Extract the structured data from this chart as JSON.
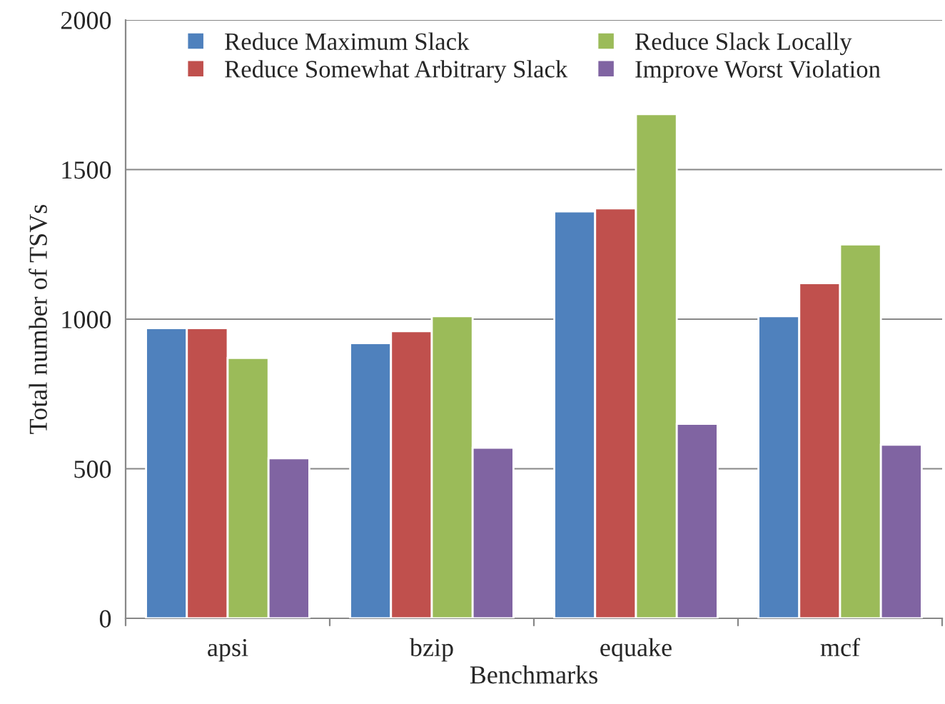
{
  "chart_data": {
    "type": "bar",
    "xlabel": "Benchmarks",
    "ylabel": "Total number of TSVs",
    "categories": [
      "apsi",
      "bzip",
      "equake",
      "mcf"
    ],
    "series": [
      {
        "name": "Reduce Maximum Slack",
        "color": "#4f81bd",
        "values": [
          970,
          920,
          1360,
          1010
        ]
      },
      {
        "name": "Reduce Somewhat Arbitrary Slack",
        "color": "#c0504d",
        "values": [
          970,
          960,
          1370,
          1120
        ]
      },
      {
        "name": "Reduce Slack Locally",
        "color": "#9bbb59",
        "values": [
          870,
          1010,
          1685,
          1250
        ]
      },
      {
        "name": "Improve Worst Violation",
        "color": "#8064a2",
        "values": [
          535,
          570,
          650,
          580
        ]
      }
    ],
    "ylim": [
      0,
      2000
    ],
    "yticks": [
      0,
      500,
      1000,
      1500,
      2000
    ],
    "grid": "y",
    "legend": "top"
  }
}
